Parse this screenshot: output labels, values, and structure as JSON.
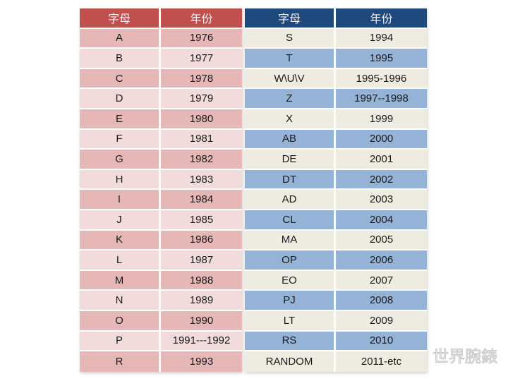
{
  "page": {
    "background": "#ffffff"
  },
  "left_table": {
    "headers": [
      "字母",
      "年份"
    ],
    "header_bg": "#C0504D",
    "row_alt_colors": [
      "#E5B8B7",
      "#F2DCDB"
    ],
    "rows": [
      [
        "A",
        "1976"
      ],
      [
        "B",
        "1977"
      ],
      [
        "C",
        "1978"
      ],
      [
        "D",
        "1979"
      ],
      [
        "E",
        "1980"
      ],
      [
        "F",
        "1981"
      ],
      [
        "G",
        "1982"
      ],
      [
        "H",
        "1983"
      ],
      [
        "I",
        "1984"
      ],
      [
        "J",
        "1985"
      ],
      [
        "K",
        "1986"
      ],
      [
        "L",
        "1987"
      ],
      [
        "M",
        "1988"
      ],
      [
        "N",
        "1989"
      ],
      [
        "O",
        "1990"
      ],
      [
        "P",
        "1991---1992"
      ],
      [
        "R",
        "1993"
      ]
    ]
  },
  "right_table": {
    "headers": [
      "字母",
      "年份"
    ],
    "header_bg": "#1F497D",
    "row_alt_colors": [
      "#EEECE1",
      "#95B3D7"
    ],
    "rows": [
      [
        "S",
        "1994"
      ],
      [
        "T",
        "1995"
      ],
      [
        "W\\U\\V",
        "1995-1996"
      ],
      [
        "Z",
        "1997--1998"
      ],
      [
        "X",
        "1999"
      ],
      [
        "AB",
        "2000"
      ],
      [
        "DE",
        "2001"
      ],
      [
        "DT",
        "2002"
      ],
      [
        "AD",
        "2003"
      ],
      [
        "CL",
        "2004"
      ],
      [
        "MA",
        "2005"
      ],
      [
        "OP",
        "2006"
      ],
      [
        "EO",
        "2007"
      ],
      [
        "PJ",
        "2008"
      ],
      [
        "LT",
        "2009"
      ],
      [
        "RS",
        "2010"
      ],
      [
        "RANDOM",
        "2011-etc"
      ]
    ]
  },
  "watermark": {
    "text": "世界腕錶",
    "color": "#ececec"
  }
}
